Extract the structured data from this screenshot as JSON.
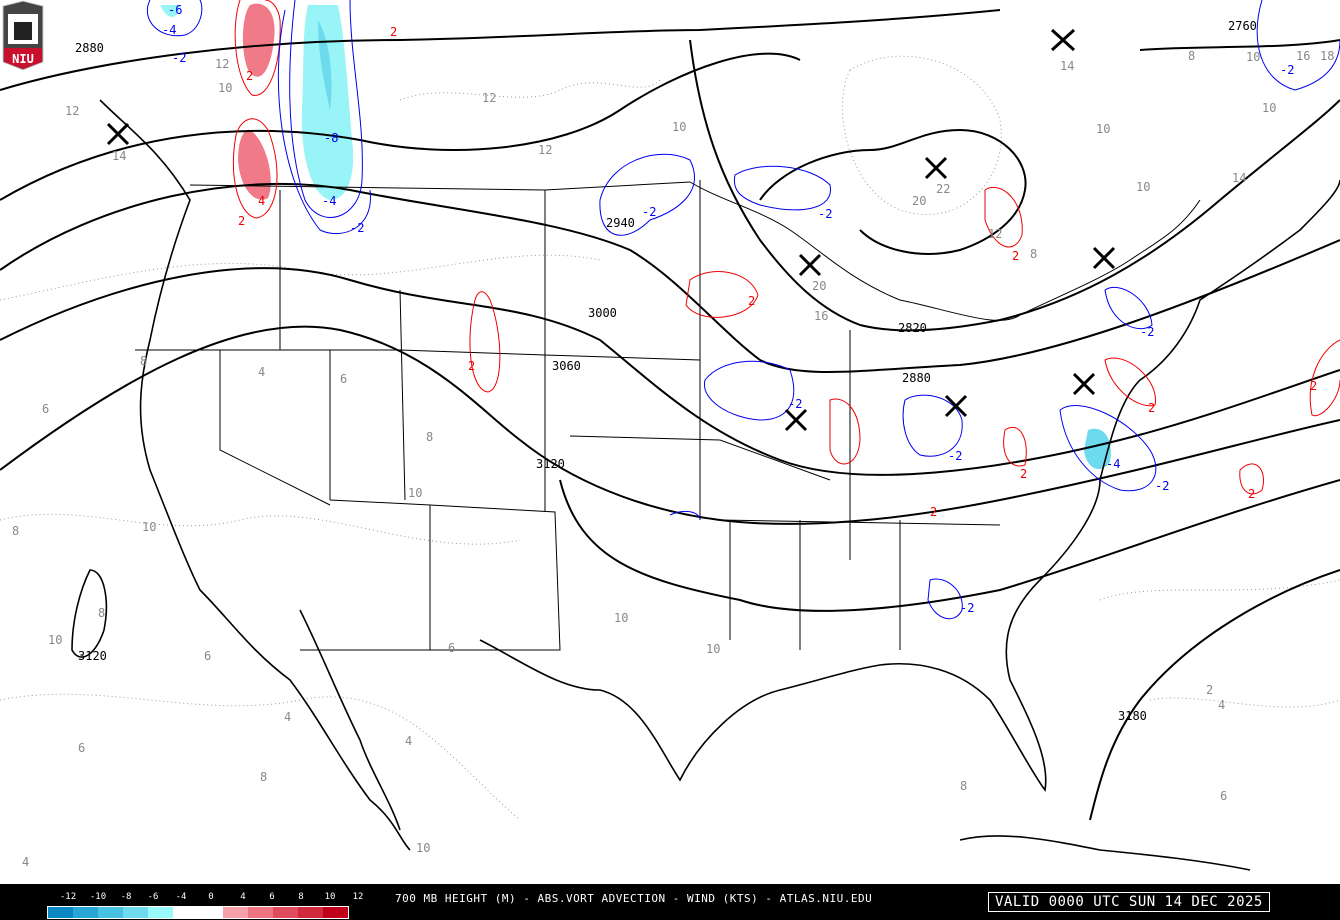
{
  "title": "700 MB HEIGHT (M) - ABS.VORT ADVECTION - WIND (KTS) - ATLAS.NIU.EDU",
  "valid": "VALID 0000 UTC SUN 14 DEC 2025",
  "logo_text": "NIU",
  "colorbar": {
    "labels": [
      "-12",
      "-10",
      "-8",
      "-6",
      "-4",
      "0",
      "4",
      "6",
      "8",
      "10",
      "12"
    ],
    "colors": [
      "#0a88c4",
      "#28a6d6",
      "#48c2e2",
      "#6edaee",
      "#98fafa",
      "#ffffff",
      "#ffffff",
      "#f8a0aa",
      "#ee7482",
      "#e04c5e",
      "#d02a3c",
      "#c0001a"
    ]
  },
  "height_labels": [
    "2880",
    "2760",
    "2940",
    "3000",
    "3060",
    "3120",
    "3120",
    "2820",
    "2880",
    "3180"
  ],
  "advection_labels": {
    "positive": [
      "2",
      "2",
      "2",
      "4",
      "2",
      "2",
      "2",
      "2",
      "2",
      "2",
      "2",
      "2"
    ],
    "negative": [
      "-6",
      "-4",
      "-2",
      "-8",
      "-4",
      "-2",
      "-2",
      "-2",
      "-2",
      "-2",
      "-2",
      "-4",
      "-2",
      "-2",
      "-2"
    ]
  },
  "vorticity_labels": [
    "12",
    "12",
    "14",
    "10",
    "12",
    "12",
    "10",
    "14",
    "20",
    "22",
    "16",
    "20",
    "14",
    "10",
    "10",
    "10",
    "8",
    "8",
    "6",
    "4",
    "6",
    "8",
    "10",
    "10",
    "8",
    "10",
    "8",
    "6",
    "10",
    "10",
    "4",
    "4",
    "6",
    "8",
    "6",
    "2",
    "4",
    "6",
    "4",
    "10",
    "8",
    "16",
    "18",
    "12",
    "10",
    "8"
  ]
}
